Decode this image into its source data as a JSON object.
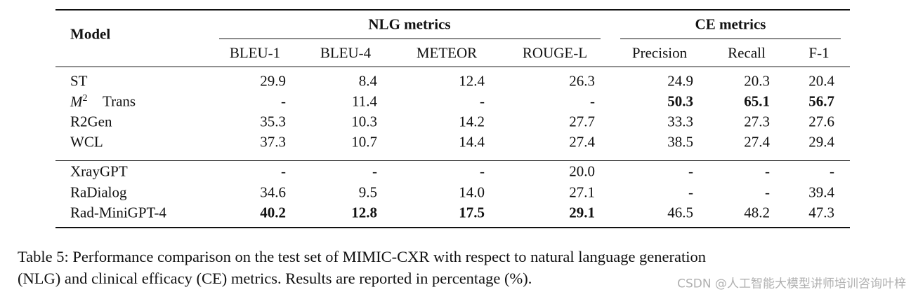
{
  "table": {
    "model_header": "Model",
    "group_headers": [
      "NLG metrics",
      "CE metrics"
    ],
    "columns": [
      "BLEU-1",
      "BLEU-4",
      "METEOR",
      "ROUGE-L",
      "Precision",
      "Recall",
      "F-1"
    ],
    "rows": [
      {
        "model": "ST",
        "cells": [
          "29.9",
          "8.4",
          "12.4",
          "26.3",
          "24.9",
          "20.3",
          "20.4"
        ]
      },
      {
        "model_math": {
          "base": "M",
          "sup": "2"
        },
        "model": "Trans",
        "cells": [
          "-",
          "11.4",
          "-",
          "-",
          "50.3",
          "65.1",
          "56.7"
        ],
        "bold": [
          4,
          5,
          6
        ]
      },
      {
        "model": "R2Gen",
        "cells": [
          "35.3",
          "10.3",
          "14.2",
          "27.7",
          "33.3",
          "27.3",
          "27.6"
        ]
      },
      {
        "model": "WCL",
        "cells": [
          "37.3",
          "10.7",
          "14.4",
          "27.4",
          "38.5",
          "27.4",
          "29.4"
        ]
      },
      {
        "model": "XrayGPT",
        "cells": [
          "-",
          "-",
          "-",
          "20.0",
          "-",
          "-",
          "-"
        ]
      },
      {
        "model": "RaDialog",
        "cells": [
          "34.6",
          "9.5",
          "14.0",
          "27.1",
          "-",
          "-",
          "39.4"
        ]
      },
      {
        "model": "Rad-MiniGPT-4",
        "cells": [
          "40.2",
          "12.8",
          "17.5",
          "29.1",
          "46.5",
          "48.2",
          "47.3"
        ],
        "bold": [
          0,
          1,
          2,
          3
        ]
      }
    ]
  },
  "caption": [
    "Table 5: Performance comparison on the test set of MIMIC-CXR with respect to natural language generation",
    "(NLG) and clinical efficacy (CE) metrics. Results are reported in percentage (%)."
  ],
  "watermark": "CSDN @人工智能大模型讲师培训咨询叶梓"
}
